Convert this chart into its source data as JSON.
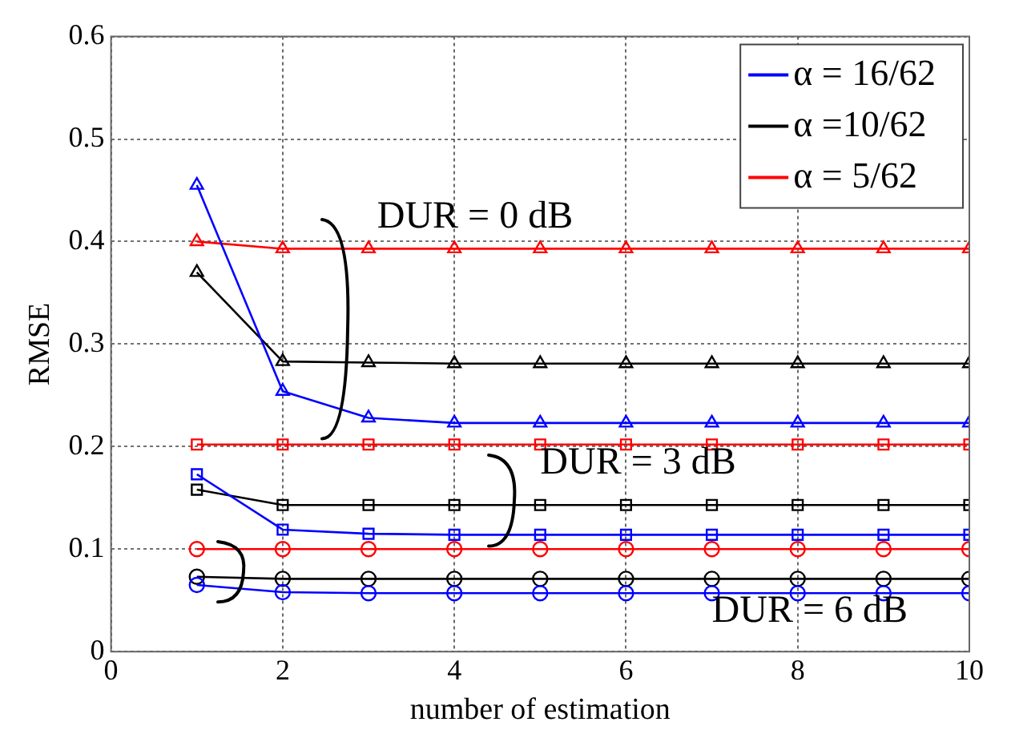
{
  "chart_data": {
    "type": "line",
    "xlabel": "number of estimation",
    "ylabel": "RMSE",
    "x": [
      1,
      2,
      3,
      4,
      5,
      6,
      7,
      8,
      9,
      10
    ],
    "xlim": [
      0,
      10
    ],
    "xticks": [
      0,
      2,
      4,
      6,
      8,
      10
    ],
    "ylim": [
      0,
      0.6
    ],
    "yticks": [
      0,
      0.1,
      0.2,
      0.3,
      0.4,
      0.5,
      0.6
    ],
    "grid": true,
    "legend": "top right",
    "line_style": "solid",
    "series": [
      {
        "name": "α = 16/62",
        "color": "#0000ff",
        "marker": "triangle",
        "values": [
          0.455,
          0.254,
          0.228,
          0.223,
          0.223,
          0.223,
          0.223,
          0.223,
          0.223,
          0.223
        ]
      },
      {
        "name": "α =10/62",
        "color": "#000000",
        "marker": "triangle",
        "values": [
          0.37,
          0.283,
          0.282,
          0.281,
          0.281,
          0.281,
          0.281,
          0.281,
          0.281,
          0.281
        ]
      },
      {
        "name": "α = 5/62",
        "color": "#ff0000",
        "marker": "triangle",
        "values": [
          0.4,
          0.393,
          0.393,
          0.393,
          0.393,
          0.393,
          0.393,
          0.393,
          0.393,
          0.393
        ]
      },
      {
        "color": "#0000ff",
        "marker": "square",
        "values": [
          0.173,
          0.119,
          0.115,
          0.114,
          0.114,
          0.114,
          0.114,
          0.114,
          0.114,
          0.114
        ]
      },
      {
        "color": "#000000",
        "marker": "square",
        "values": [
          0.158,
          0.143,
          0.143,
          0.143,
          0.143,
          0.143,
          0.143,
          0.143,
          0.143,
          0.143
        ]
      },
      {
        "color": "#ff0000",
        "marker": "square",
        "values": [
          0.202,
          0.202,
          0.202,
          0.202,
          0.202,
          0.202,
          0.202,
          0.202,
          0.202,
          0.202
        ]
      },
      {
        "color": "#0000ff",
        "marker": "circle",
        "values": [
          0.065,
          0.058,
          0.057,
          0.057,
          0.057,
          0.057,
          0.057,
          0.057,
          0.057,
          0.057
        ]
      },
      {
        "color": "#000000",
        "marker": "circle",
        "values": [
          0.073,
          0.071,
          0.071,
          0.071,
          0.071,
          0.071,
          0.071,
          0.071,
          0.071,
          0.071
        ]
      },
      {
        "color": "#ff0000",
        "marker": "circle",
        "values": [
          0.1,
          0.1,
          0.1,
          0.1,
          0.1,
          0.1,
          0.1,
          0.1,
          0.1,
          0.1
        ]
      }
    ],
    "annotations": [
      "DUR = 0 dB",
      "DUR = 3 dB",
      "DUR = 6 dB"
    ]
  }
}
